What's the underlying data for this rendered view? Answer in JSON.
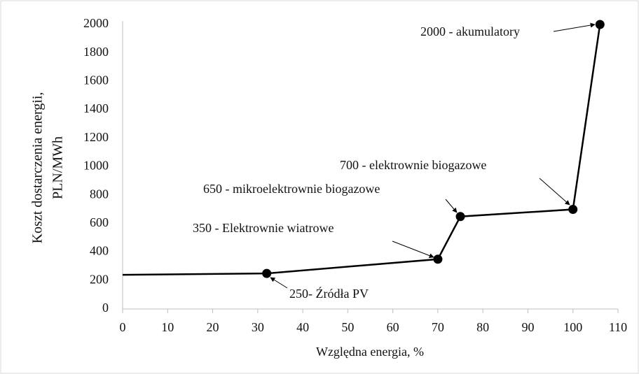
{
  "chart_data": {
    "type": "line",
    "xlabel": "Względna energia, %",
    "ylabel": [
      "Koszt dostarczenia energii,",
      "PLN/MWh"
    ],
    "series": [
      {
        "color": "#000000",
        "x": [
          0,
          32,
          70,
          75,
          100,
          106
        ],
        "values": [
          240,
          250,
          350,
          650,
          700,
          2000
        ]
      }
    ],
    "annotations": [
      "250- Źródła PV",
      "350 - Elektrownie wiatrowe",
      "650 - mikroelektrownie biogazowe",
      "700 - elektrownie biogazowe",
      "2000 - akumulatory"
    ],
    "xlim": [
      0,
      110
    ],
    "xticks": [
      0,
      10,
      20,
      30,
      40,
      50,
      60,
      70,
      80,
      90,
      100,
      110
    ],
    "ylim": [
      0,
      2000
    ],
    "yticks": [
      0,
      200,
      400,
      600,
      800,
      1000,
      1200,
      1400,
      1600,
      1800,
      2000
    ],
    "grid": false
  }
}
